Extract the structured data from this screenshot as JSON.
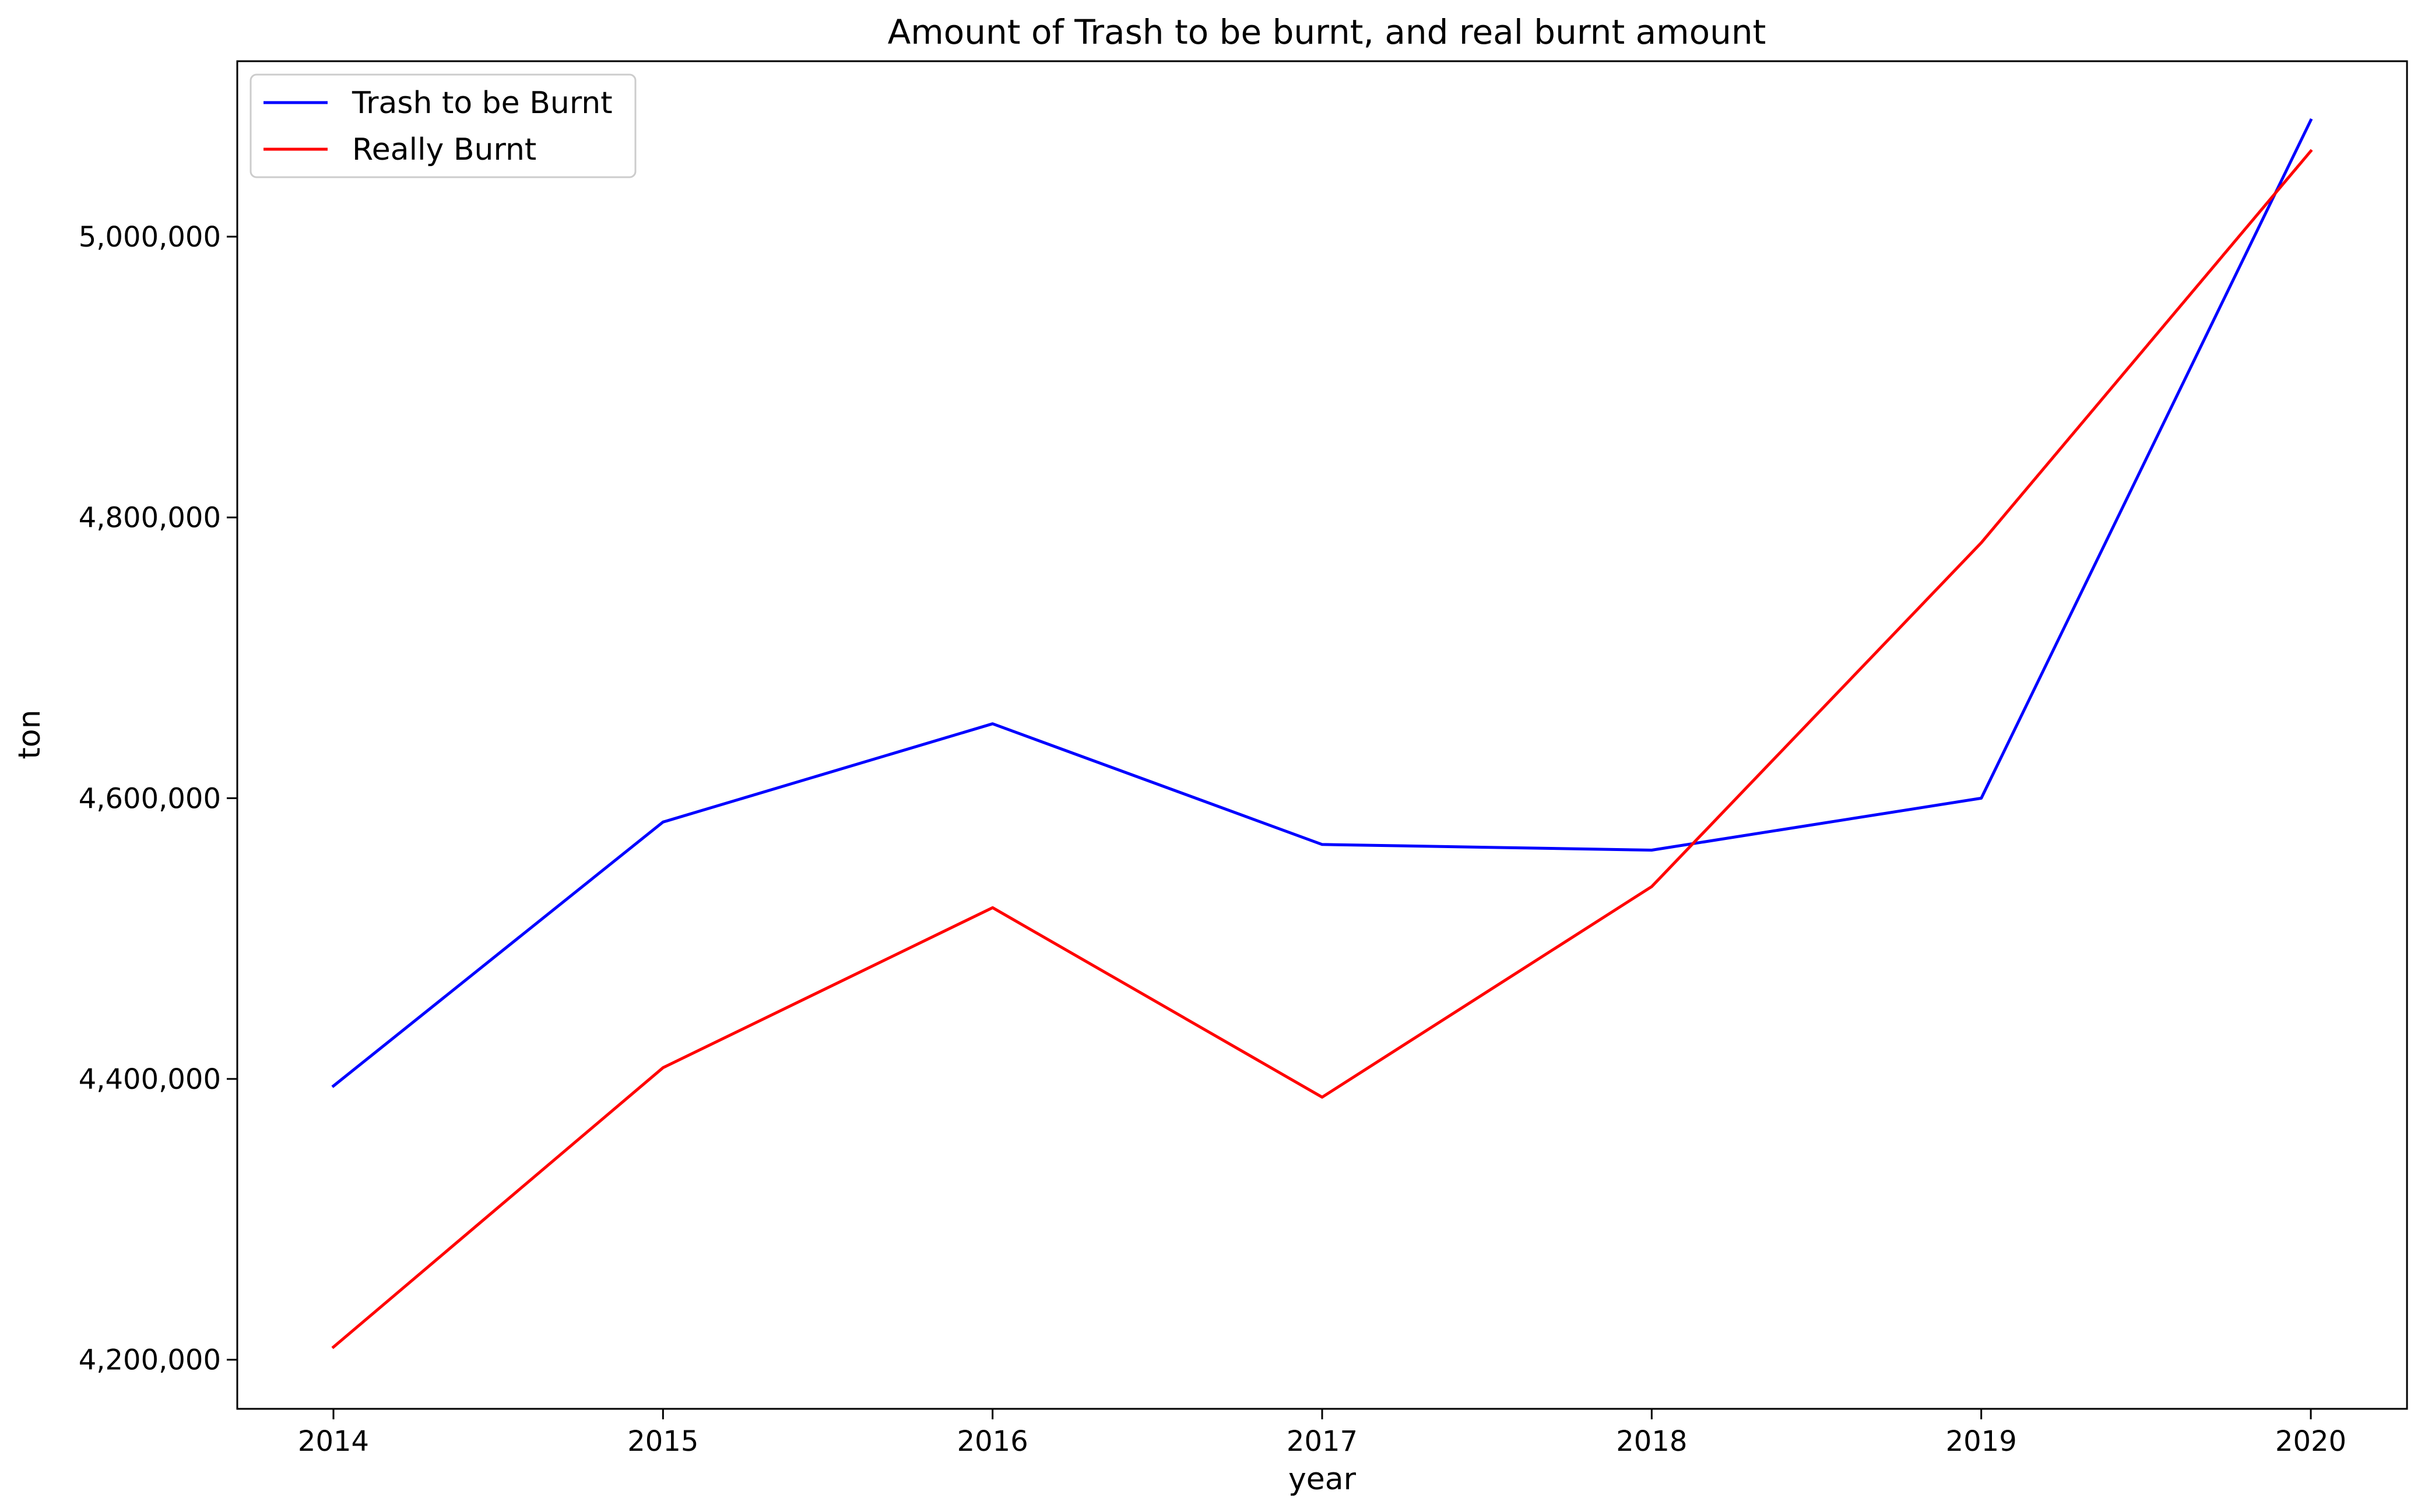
{
  "chart_data": {
    "type": "line",
    "title": "Amount of Trash to be burnt, and real burnt amount",
    "xlabel": "year",
    "ylabel": "ton",
    "x": [
      "2014",
      "2015",
      "2016",
      "2017",
      "2018",
      "2019",
      "2020"
    ],
    "x_ticks": [
      "2014",
      "2015",
      "2016",
      "2017",
      "2018",
      "2019",
      "2020"
    ],
    "y_ticks": [
      4200000,
      4400000,
      4600000,
      4800000,
      5000000
    ],
    "y_tick_labels": [
      "4,200,000",
      "4,400,000",
      "4,600,000",
      "4,800,000",
      "5,000,000"
    ],
    "ylim": [
      4165000,
      5125000
    ],
    "grid": false,
    "legend_position": "top-left",
    "series": [
      {
        "name": "Trash to be Burnt",
        "color": "#0000ff",
        "values": [
          4395000,
          4583000,
          4653000,
          4567000,
          4563000,
          4600000,
          5083000
        ]
      },
      {
        "name": "Really Burnt",
        "color": "#ff0000",
        "values": [
          4209000,
          4408000,
          4522000,
          4387000,
          4537000,
          4782000,
          5061000
        ]
      }
    ]
  }
}
